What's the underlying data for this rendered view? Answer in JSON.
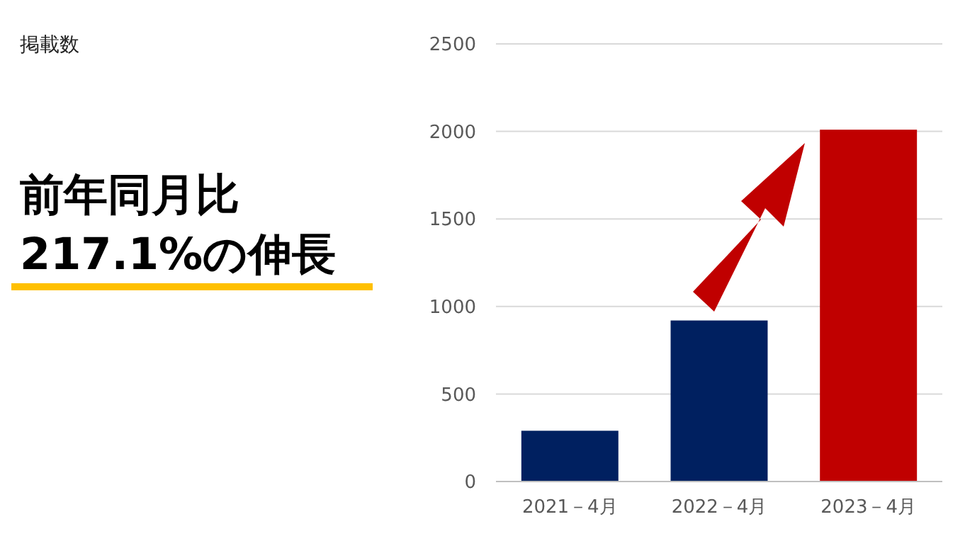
{
  "chart_data": {
    "type": "bar",
    "title": "掲載数",
    "annotations": [
      "前年同月比",
      "217.1%の伸長"
    ],
    "categories": [
      "2021－4月",
      "2022－4月",
      "2023－4月"
    ],
    "values": [
      290,
      920,
      2010
    ],
    "colors": [
      "#002060",
      "#002060",
      "#c00000"
    ],
    "ylim": [
      0,
      2500
    ],
    "yticks": [
      0,
      500,
      1000,
      1500,
      2000,
      2500
    ],
    "grid": "y"
  }
}
